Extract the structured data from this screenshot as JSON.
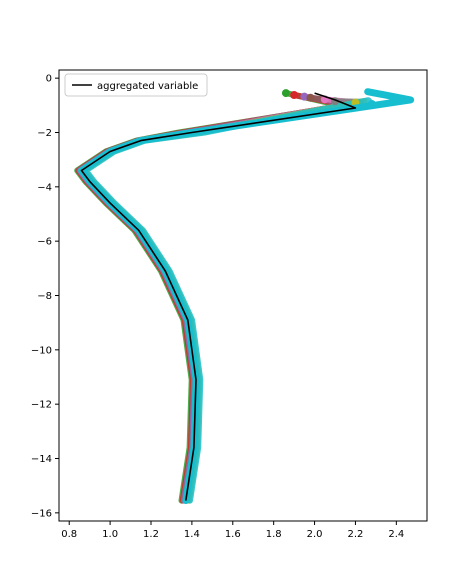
{
  "chart_data": {
    "type": "line",
    "title": "",
    "xlabel": "",
    "ylabel": "",
    "xlim": [
      0.75,
      2.55
    ],
    "ylim": [
      -16.3,
      0.3
    ],
    "x_ticks": [
      0.8,
      1.0,
      1.2,
      1.4,
      1.6,
      1.8,
      2.0,
      2.2,
      2.4
    ],
    "x_tick_labels": [
      "0.8",
      "1.0",
      "1.2",
      "1.4",
      "1.6",
      "1.8",
      "2.0",
      "2.2",
      "2.4"
    ],
    "y_ticks": [
      0,
      -2,
      -4,
      -6,
      -8,
      -10,
      -12,
      -14,
      -16
    ],
    "y_tick_labels": [
      "0",
      "−2",
      "−4",
      "−6",
      "−8",
      "−10",
      "−12",
      "−14",
      "−16"
    ],
    "grid": false,
    "legend": {
      "location": "upper-left",
      "entries": [
        "aggregated variable"
      ]
    },
    "aggregated": {
      "name": "aggregated variable",
      "color": "#000000",
      "points": [
        [
          2.0,
          -0.55
        ],
        [
          2.1,
          -0.8
        ],
        [
          2.2,
          -1.1
        ],
        [
          1.4,
          -2.0
        ],
        [
          1.15,
          -2.3
        ],
        [
          1.0,
          -2.7
        ],
        [
          0.86,
          -3.4
        ],
        [
          0.9,
          -3.8
        ],
        [
          1.0,
          -4.6
        ],
        [
          1.14,
          -5.6
        ],
        [
          1.27,
          -7.1
        ],
        [
          1.38,
          -8.9
        ],
        [
          1.42,
          -11.1
        ],
        [
          1.41,
          -13.6
        ],
        [
          1.37,
          -15.55
        ]
      ]
    },
    "ensemble": {
      "description_colors": [
        "#2ca02c",
        "#d62728",
        "#9467bd",
        "#8c564b",
        "#e377c2",
        "#7f7f7f",
        "#bcbd22",
        "#17becf"
      ],
      "base_profile": [
        [
          2.2,
          -0.9
        ],
        [
          1.4,
          -2.0
        ],
        [
          1.15,
          -2.3
        ],
        [
          1.0,
          -2.7
        ],
        [
          0.86,
          -3.4
        ],
        [
          0.9,
          -3.8
        ],
        [
          1.0,
          -4.6
        ],
        [
          1.14,
          -5.6
        ],
        [
          1.27,
          -7.1
        ],
        [
          1.38,
          -8.9
        ],
        [
          1.42,
          -11.1
        ],
        [
          1.41,
          -13.6
        ],
        [
          1.37,
          -15.55
        ]
      ],
      "surface_start_x": [
        1.86,
        1.9,
        1.95,
        1.98,
        2.05,
        2.1,
        2.2,
        2.28
      ],
      "surface_depths": [
        -0.55,
        -0.62,
        -0.68,
        -0.72,
        -0.78,
        -0.85,
        -0.9,
        -0.95
      ]
    }
  }
}
